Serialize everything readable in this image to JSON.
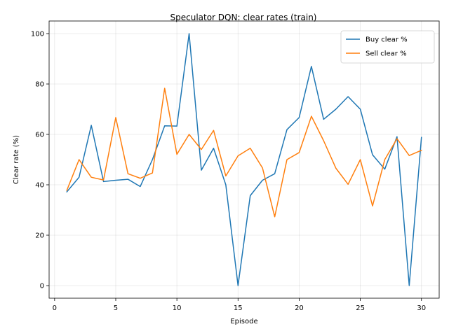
{
  "chart_data": {
    "type": "line",
    "title": "Speculator DQN: clear rates (train)",
    "xlabel": "Episode",
    "ylabel": "Clear rate (%)",
    "xlim": [
      -0.45,
      31.45
    ],
    "ylim": [
      -5,
      105
    ],
    "xticks": [
      0,
      5,
      10,
      15,
      20,
      25,
      30
    ],
    "yticks": [
      0,
      20,
      40,
      60,
      80,
      100
    ],
    "grid": true,
    "legend_position": "top-right",
    "x": [
      1,
      2,
      3,
      4,
      5,
      6,
      7,
      8,
      9,
      10,
      11,
      12,
      13,
      14,
      15,
      16,
      17,
      18,
      19,
      20,
      21,
      22,
      23,
      24,
      25,
      26,
      27,
      28,
      29,
      30
    ],
    "series": [
      {
        "name": "Buy clear %",
        "color": "#1f77b4",
        "values": [
          37.2,
          43.0,
          63.6,
          41.3,
          41.8,
          42.2,
          39.3,
          50.0,
          63.4,
          63.3,
          100.0,
          45.8,
          54.5,
          40.0,
          0.0,
          35.7,
          41.8,
          44.4,
          61.9,
          66.7,
          87.0,
          66.0,
          70.0,
          75.0,
          70.0,
          51.9,
          46.2,
          59.1,
          0.0,
          58.8
        ]
      },
      {
        "name": "Sell clear %",
        "color": "#ff7f0e",
        "values": [
          37.8,
          50.0,
          43.0,
          41.9,
          66.7,
          44.4,
          42.6,
          44.7,
          78.3,
          52.1,
          60.0,
          54.0,
          61.6,
          43.5,
          51.5,
          54.5,
          46.7,
          27.3,
          50.0,
          52.8,
          67.2,
          57.5,
          46.6,
          40.2,
          50.0,
          31.6,
          50.0,
          58.3,
          51.6,
          53.7
        ]
      }
    ]
  }
}
